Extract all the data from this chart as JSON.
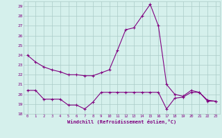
{
  "title": "",
  "xlabel": "Windchill (Refroidissement éolien,°C)",
  "x": [
    0,
    1,
    2,
    3,
    4,
    5,
    6,
    7,
    8,
    9,
    10,
    11,
    12,
    13,
    14,
    15,
    16,
    17,
    18,
    19,
    20,
    21,
    22,
    23
  ],
  "line1": [
    24,
    23.3,
    22.8,
    22.5,
    22.3,
    22.0,
    22.0,
    21.9,
    21.9,
    22.2,
    22.5,
    24.5,
    26.6,
    26.8,
    28.0,
    29.2,
    27.0,
    21.0,
    20.0,
    19.8,
    20.4,
    20.2,
    19.4,
    19.3
  ],
  "line2": [
    20.4,
    20.4,
    19.5,
    19.5,
    19.5,
    18.9,
    18.9,
    18.5,
    19.2,
    20.2,
    20.2,
    20.2,
    20.2,
    20.2,
    20.2,
    20.2,
    20.2,
    18.5,
    19.6,
    19.7,
    20.2,
    20.2,
    19.3,
    19.3
  ],
  "line_color": "#800080",
  "bg_color": "#d5f0ec",
  "grid_color": "#aaccc8",
  "text_color": "#800080",
  "ylim": [
    18,
    29.5
  ],
  "yticks": [
    18,
    19,
    20,
    21,
    22,
    23,
    24,
    25,
    26,
    27,
    28,
    29
  ],
  "xlim": [
    -0.5,
    23.5
  ]
}
